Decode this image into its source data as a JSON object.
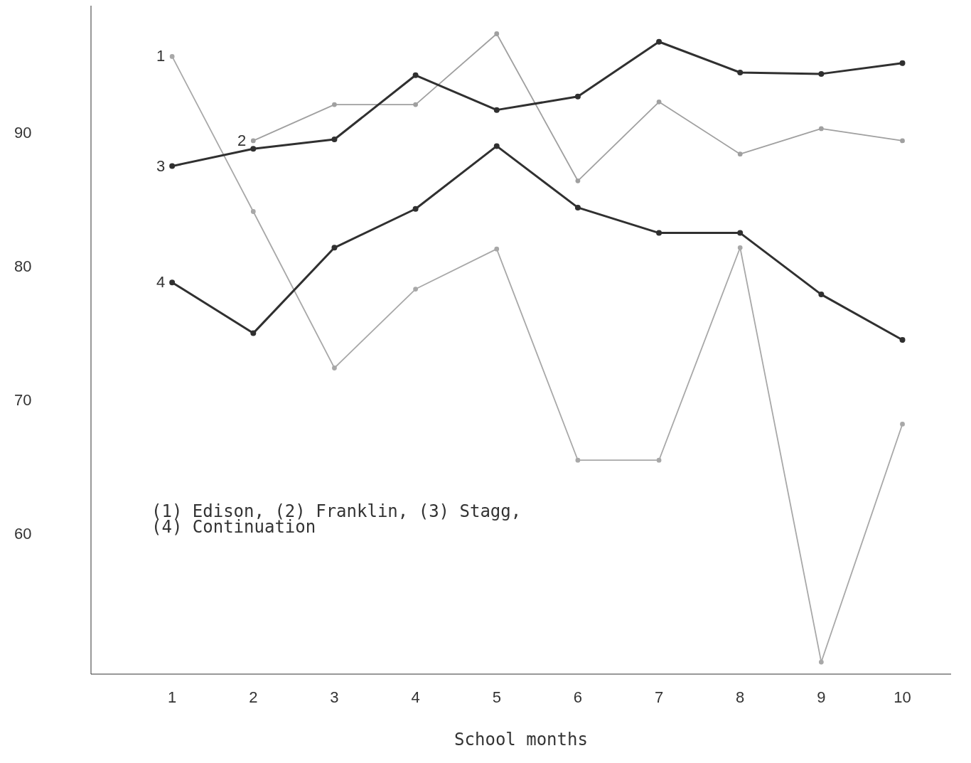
{
  "chart_data": {
    "type": "line",
    "xlabel": "School months",
    "x": [
      1,
      2,
      3,
      4,
      5,
      6,
      7,
      8,
      9,
      10
    ],
    "xlim": [
      0,
      10.6
    ],
    "xticks": [
      1,
      2,
      3,
      4,
      5,
      6,
      7,
      8,
      9,
      10
    ],
    "ylim": [
      49.5,
      99.5
    ],
    "yticks": [
      60,
      70,
      80,
      90
    ],
    "marker": "circle",
    "line_style": "solid",
    "series": [
      {
        "name": "1",
        "color": "#a8a8a8",
        "values": [
          95.7,
          84.1,
          72.4,
          78.3,
          81.3,
          65.5,
          65.5,
          81.4,
          50.4,
          68.2
        ]
      },
      {
        "name": "2",
        "color": "#a0a0a0",
        "values": [
          null,
          89.4,
          92.1,
          92.1,
          97.4,
          86.4,
          92.3,
          88.4,
          90.3,
          89.4
        ]
      },
      {
        "name": "3",
        "color": "#303030",
        "values": [
          87.5,
          88.8,
          89.5,
          94.3,
          91.7,
          92.7,
          96.8,
          94.5,
          94.4,
          95.2
        ]
      },
      {
        "name": "4",
        "color": "#303030",
        "values": [
          78.8,
          75.0,
          81.4,
          84.3,
          89.0,
          84.4,
          82.5,
          82.5,
          77.9,
          74.5
        ]
      }
    ],
    "annotations": [
      "(1) Edison, (2) Franklin, (3) Stagg, (4) Continuation"
    ]
  }
}
